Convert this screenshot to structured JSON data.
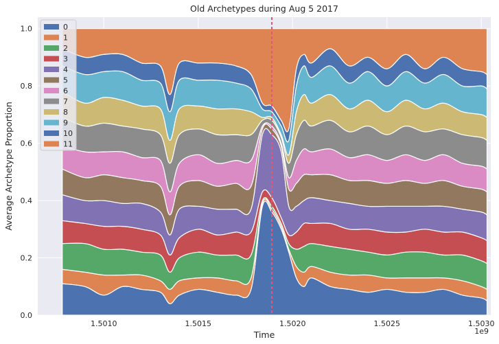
{
  "chart_data": {
    "type": "area",
    "stacked": true,
    "title": "Old Archetypes during Aug 5 2017",
    "xlabel": "Time",
    "ylabel": "Average Archetype Proportion",
    "x_offset_label": "1e9",
    "xlim": [
      1.50065,
      1.50305
    ],
    "ylim": [
      0,
      1.04
    ],
    "x_ticks": [
      1.501,
      1.5015,
      1.502,
      1.5025,
      1.503
    ],
    "x_tick_labels": [
      "1.5010",
      "1.5015",
      "1.5020",
      "1.5025",
      "1.5030"
    ],
    "y_ticks": [
      0.0,
      0.2,
      0.4,
      0.6,
      0.8,
      1.0
    ],
    "y_tick_labels": [
      "0.0",
      "0.2",
      "0.4",
      "0.6",
      "0.8",
      "1.0"
    ],
    "grid": true,
    "legend_position": "top-left",
    "vline": {
      "x": 1.50189,
      "color": "#e0577a"
    },
    "x": [
      1.50078,
      1.5009,
      1.501,
      1.5011,
      1.5012,
      1.5013,
      1.50135,
      1.5014,
      1.5015,
      1.5016,
      1.5017,
      1.50178,
      1.50184,
      1.50189,
      1.50194,
      1.50198,
      1.50202,
      1.50206,
      1.5021,
      1.5022,
      1.5023,
      1.5024,
      1.5025,
      1.5026,
      1.5027,
      1.5028,
      1.5029,
      1.503,
      1.50303
    ],
    "series": [
      {
        "name": "0",
        "color": "#4c72b0",
        "values": [
          0.11,
          0.1,
          0.07,
          0.1,
          0.09,
          0.08,
          0.04,
          0.07,
          0.09,
          0.08,
          0.07,
          0.09,
          0.38,
          0.36,
          0.3,
          0.22,
          0.13,
          0.1,
          0.13,
          0.1,
          0.09,
          0.08,
          0.09,
          0.08,
          0.08,
          0.09,
          0.07,
          0.06,
          0.05
        ]
      },
      {
        "name": "1",
        "color": "#dd8452",
        "values": [
          0.05,
          0.05,
          0.07,
          0.04,
          0.05,
          0.04,
          0.05,
          0.05,
          0.04,
          0.05,
          0.05,
          0.04,
          0.01,
          0.01,
          0.01,
          0.01,
          0.04,
          0.05,
          0.04,
          0.05,
          0.05,
          0.06,
          0.04,
          0.05,
          0.05,
          0.04,
          0.05,
          0.04,
          0.04
        ]
      },
      {
        "name": "2",
        "color": "#55a868",
        "values": [
          0.09,
          0.1,
          0.09,
          0.09,
          0.08,
          0.09,
          0.06,
          0.08,
          0.09,
          0.08,
          0.09,
          0.08,
          0.01,
          0.01,
          0.01,
          0.02,
          0.06,
          0.09,
          0.08,
          0.09,
          0.09,
          0.08,
          0.08,
          0.09,
          0.09,
          0.08,
          0.09,
          0.09,
          0.09
        ]
      },
      {
        "name": "3",
        "color": "#c44e52",
        "values": [
          0.08,
          0.07,
          0.08,
          0.08,
          0.08,
          0.07,
          0.06,
          0.07,
          0.08,
          0.07,
          0.08,
          0.08,
          0.03,
          0.03,
          0.02,
          0.03,
          0.06,
          0.08,
          0.07,
          0.08,
          0.07,
          0.08,
          0.08,
          0.07,
          0.08,
          0.08,
          0.08,
          0.08,
          0.08
        ]
      },
      {
        "name": "4",
        "color": "#8172b3",
        "values": [
          0.09,
          0.08,
          0.09,
          0.08,
          0.09,
          0.08,
          0.07,
          0.1,
          0.08,
          0.09,
          0.08,
          0.08,
          0.2,
          0.22,
          0.23,
          0.1,
          0.09,
          0.08,
          0.09,
          0.08,
          0.09,
          0.08,
          0.09,
          0.09,
          0.08,
          0.09,
          0.08,
          0.09,
          0.09
        ]
      },
      {
        "name": "5",
        "color": "#937860",
        "values": [
          0.09,
          0.08,
          0.09,
          0.09,
          0.08,
          0.09,
          0.07,
          0.08,
          0.09,
          0.08,
          0.09,
          0.08,
          0.02,
          0.02,
          0.02,
          0.06,
          0.08,
          0.09,
          0.08,
          0.09,
          0.08,
          0.09,
          0.08,
          0.09,
          0.08,
          0.09,
          0.08,
          0.08,
          0.08
        ]
      },
      {
        "name": "6",
        "color": "#da8bc3",
        "values": [
          0.08,
          0.09,
          0.08,
          0.09,
          0.08,
          0.09,
          0.08,
          0.08,
          0.09,
          0.08,
          0.08,
          0.09,
          0.01,
          0.01,
          0.01,
          0.04,
          0.08,
          0.09,
          0.08,
          0.09,
          0.08,
          0.09,
          0.08,
          0.09,
          0.08,
          0.09,
          0.08,
          0.08,
          0.08
        ]
      },
      {
        "name": "7",
        "color": "#8c8c8c",
        "values": [
          0.1,
          0.09,
          0.1,
          0.09,
          0.1,
          0.09,
          0.1,
          0.1,
          0.09,
          0.1,
          0.09,
          0.09,
          0.02,
          0.02,
          0.02,
          0.05,
          0.09,
          0.1,
          0.09,
          0.1,
          0.09,
          0.1,
          0.09,
          0.1,
          0.1,
          0.09,
          0.1,
          0.1,
          0.1
        ]
      },
      {
        "name": "8",
        "color": "#ccb974",
        "values": [
          0.09,
          0.08,
          0.09,
          0.09,
          0.08,
          0.09,
          0.08,
          0.09,
          0.08,
          0.09,
          0.09,
          0.08,
          0.01,
          0.01,
          0.01,
          0.03,
          0.08,
          0.09,
          0.08,
          0.09,
          0.08,
          0.09,
          0.08,
          0.09,
          0.08,
          0.09,
          0.08,
          0.08,
          0.08
        ]
      },
      {
        "name": "9",
        "color": "#64b5cd",
        "values": [
          0.09,
          0.1,
          0.09,
          0.1,
          0.09,
          0.09,
          0.1,
          0.1,
          0.09,
          0.1,
          0.09,
          0.08,
          0.03,
          0.02,
          0.03,
          0.05,
          0.09,
          0.1,
          0.09,
          0.1,
          0.09,
          0.1,
          0.09,
          0.1,
          0.09,
          0.1,
          0.09,
          0.1,
          0.1
        ]
      },
      {
        "name": "10",
        "color": "#4c72b0",
        "values": [
          0.06,
          0.06,
          0.06,
          0.06,
          0.06,
          0.06,
          0.06,
          0.06,
          0.06,
          0.06,
          0.06,
          0.05,
          0.02,
          0.02,
          0.02,
          0.04,
          0.06,
          0.04,
          0.05,
          0.06,
          0.06,
          0.05,
          0.06,
          0.06,
          0.05,
          0.06,
          0.06,
          0.05,
          0.05
        ]
      },
      {
        "name": "11",
        "color": "#dd8452",
        "values": [
          0.07,
          0.1,
          0.09,
          0.09,
          0.12,
          0.13,
          0.23,
          0.12,
          0.12,
          0.12,
          0.13,
          0.16,
          0.26,
          0.27,
          0.32,
          0.35,
          0.14,
          0.09,
          0.12,
          0.07,
          0.13,
          0.1,
          0.14,
          0.09,
          0.14,
          0.1,
          0.14,
          0.15,
          0.16
        ]
      }
    ]
  }
}
